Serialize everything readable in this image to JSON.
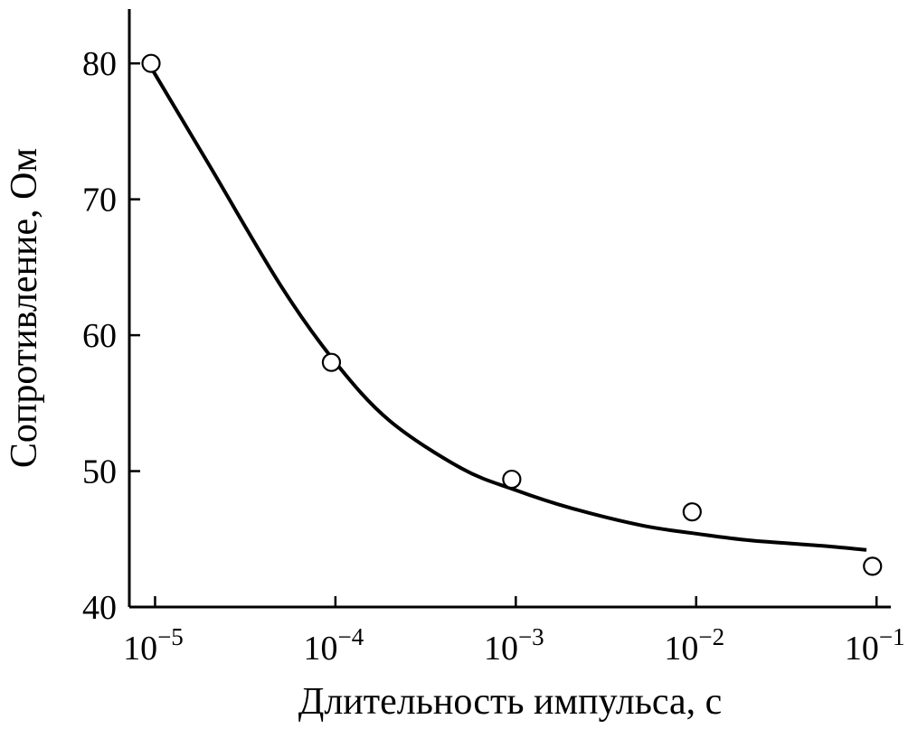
{
  "chart_data": {
    "type": "scatter",
    "title": "",
    "xlabel": "Длительность импульса, с",
    "ylabel": "Сопротивление, Ом",
    "xscale": "log",
    "xlim": [
      7.2e-06,
      0.12
    ],
    "ylim": [
      40,
      84
    ],
    "x_ticks": [
      {
        "value": 1e-05,
        "base": "10",
        "exp": "−5"
      },
      {
        "value": 0.0001,
        "base": "10",
        "exp": "−4"
      },
      {
        "value": 0.001,
        "base": "10",
        "exp": "−3"
      },
      {
        "value": 0.01,
        "base": "10",
        "exp": "−2"
      },
      {
        "value": 0.1,
        "base": "10",
        "exp": "−1"
      }
    ],
    "y_ticks": [
      {
        "value": 40,
        "label": "40"
      },
      {
        "value": 50,
        "label": "50"
      },
      {
        "value": 60,
        "label": "60"
      },
      {
        "value": 70,
        "label": "70"
      },
      {
        "value": 80,
        "label": "80"
      }
    ],
    "grid": false,
    "legend": "none",
    "series": [
      {
        "kind": "points",
        "marker": "open-circle",
        "x": [
          9.5e-06,
          9.5e-05,
          0.00095,
          0.0095,
          0.095
        ],
        "y": [
          80,
          58,
          49.4,
          47,
          43
        ]
      },
      {
        "kind": "fit-curve",
        "x": [
          9.5e-06,
          2e-05,
          5e-05,
          0.0001,
          0.0002,
          0.0005,
          0.001,
          0.002,
          0.005,
          0.01,
          0.02,
          0.05,
          0.088
        ],
        "y": [
          79.7,
          72.5,
          63.6,
          58.0,
          53.7,
          50.2,
          48.6,
          47.3,
          46.0,
          45.4,
          44.9,
          44.5,
          44.2
        ]
      }
    ],
    "colors": {
      "ink": "#000000",
      "background": "#ffffff"
    }
  }
}
